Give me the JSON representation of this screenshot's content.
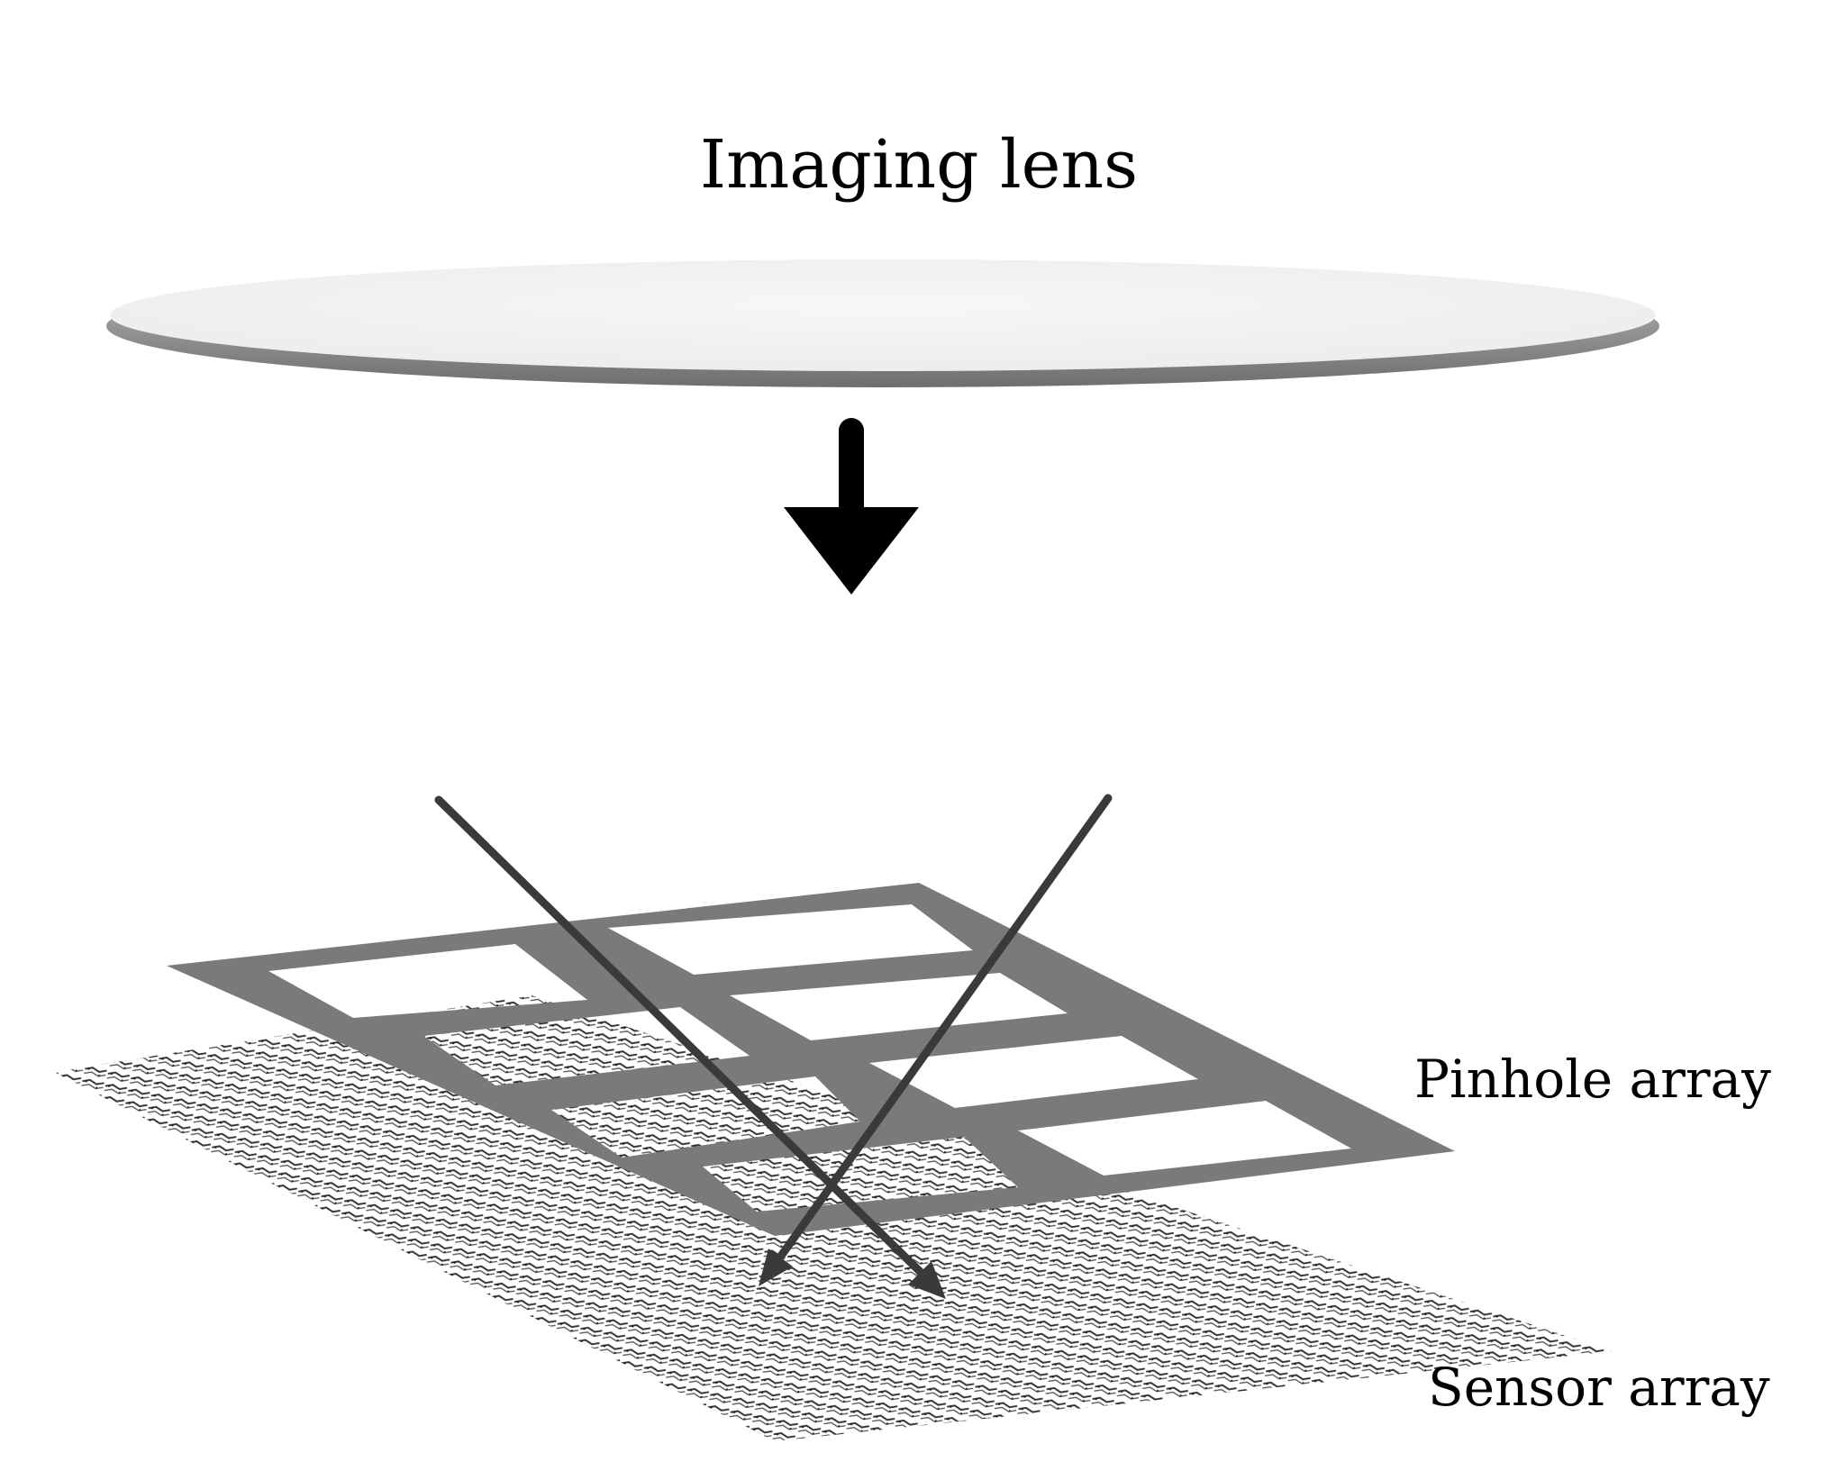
{
  "labels": {
    "imaging_lens": "Imaging lens",
    "pinhole_array": "Pinhole array",
    "sensor_array": "Sensor array"
  },
  "colors": {
    "background": "#ffffff",
    "lens_top": "#f2f2f2",
    "lens_edge": "#7a7a7a",
    "pinhole_frame": "#7a7a7a",
    "ray": "#3a3a3a",
    "main_arrow": "#000000",
    "sensor_pattern": "#333333"
  }
}
